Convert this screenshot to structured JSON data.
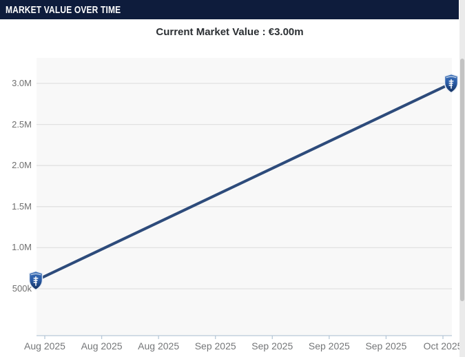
{
  "header": {
    "title": "MARKET VALUE OVER TIME"
  },
  "chart": {
    "title": "Current Market Value : €3.00m"
  },
  "chart_data": {
    "type": "line",
    "title": "Current Market Value : €3.00m",
    "currency": "EUR",
    "grid": "horizontal",
    "legend": "none",
    "x_tick_labels": [
      "Aug 2025",
      "Aug 2025",
      "Aug 2025",
      "Sep 2025",
      "Sep 2025",
      "Sep 2025",
      "Sep 2025",
      "Oct 2025"
    ],
    "y_tick_labels_bottom_to_top": [
      "500k",
      "1.0M",
      "1.5M",
      "2.0M",
      "2.5M",
      "3.0M"
    ],
    "y_tick_values_millions": [
      0.5,
      1.0,
      1.5,
      2.0,
      2.5,
      3.0
    ],
    "series": [
      {
        "name": "Market Value",
        "color": "#2d4b7b",
        "marker": "club-crest-badge",
        "points": [
          {
            "x_label": "Aug 2025",
            "x_frac": 0,
            "value_millions": 0.6
          },
          {
            "x_label": "Oct 2025",
            "x_frac": 1,
            "value_millions": 3.0
          }
        ]
      }
    ]
  },
  "colors": {
    "header_bg": "#0e1c3c",
    "header_text": "#ffffff",
    "line": "#2d4b7b",
    "plot_bg": "#f8f8f8",
    "gridline": "#e1e1e1",
    "axis_line": "#b7c8d8",
    "x_tick_label": "#747678",
    "y_tick_label": "#6f6f6f",
    "title_text": "#2b2f33",
    "badge_blue": "#2a5ca8",
    "scrollbar_thumb": "#c3c3c3",
    "scrollbar_track": "#ebebeb"
  }
}
